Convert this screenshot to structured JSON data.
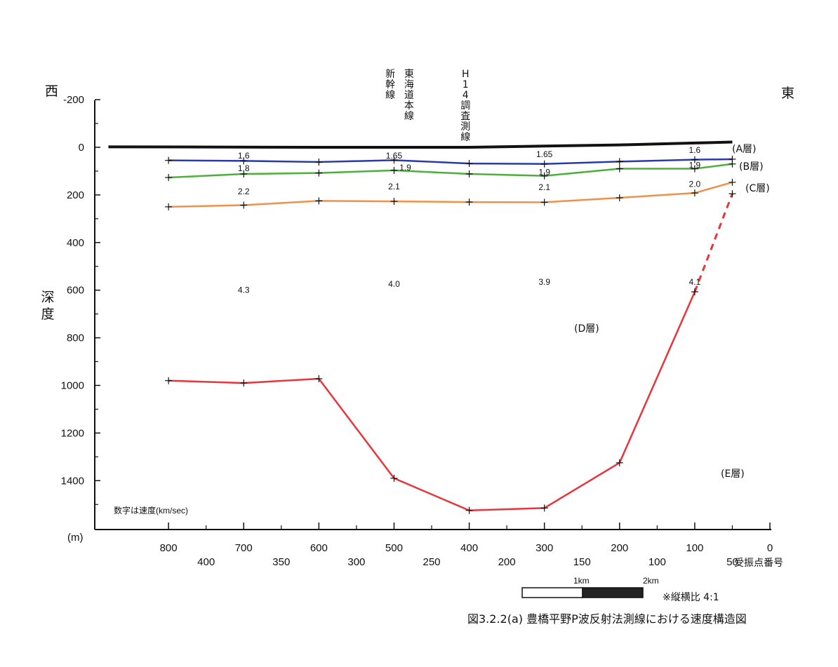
{
  "chart_data": {
    "type": "line",
    "title": "図3.2.2(a)  豊橋平野P波反射法測線における速度構造図",
    "ylabel": "深度",
    "yunit": "(m)",
    "west_label": "西",
    "east_label": "東",
    "ylim": [
      -200,
      1600
    ],
    "xlim": [
      0,
      880
    ],
    "yticks": [
      -200,
      0,
      200,
      400,
      600,
      800,
      1000,
      1200,
      1400
    ],
    "x_primary_label": "",
    "x_ticks_primary": [
      "800",
      "700",
      "600",
      "500",
      "400",
      "300",
      "200",
      "100",
      "0"
    ],
    "x_primary_values": [
      800,
      700,
      600,
      500,
      400,
      300,
      200,
      100,
      0
    ],
    "x_secondary_title": "受振点番号",
    "x_ticks_secondary": [
      "400",
      "350",
      "300",
      "250",
      "200",
      "150",
      "100",
      "50"
    ],
    "x_secondary_values": [
      750,
      650,
      550,
      450,
      350,
      250,
      150,
      50
    ],
    "crossing_lines": [
      {
        "label": "新幹線",
        "x": 505
      },
      {
        "label": "東海道本線",
        "x": 480
      },
      {
        "label": "H14調査測線",
        "x": 405
      }
    ],
    "series": [
      {
        "name": "(A層)",
        "color": "#111111",
        "x": [
          880,
          600,
          400,
          300,
          200,
          100,
          50
        ],
        "y": [
          -2,
          0,
          0,
          -5,
          -10,
          -18,
          -22
        ]
      },
      {
        "name": "(B層)",
        "color": "#2b3aa8",
        "x": [
          800,
          700,
          600,
          500,
          400,
          300,
          200,
          100,
          50
        ],
        "y": [
          55,
          57,
          62,
          54,
          68,
          70,
          60,
          52,
          50
        ]
      },
      {
        "name": "(C層)",
        "color": "#4caf3a",
        "x": [
          800,
          700,
          600,
          500,
          400,
          300,
          200,
          100,
          50
        ],
        "y": [
          127,
          112,
          108,
          97,
          112,
          120,
          90,
          90,
          70
        ]
      },
      {
        "name": "",
        "color": "#f0914a",
        "x": [
          800,
          700,
          600,
          500,
          400,
          300,
          200,
          100,
          50
        ],
        "y": [
          250,
          243,
          225,
          227,
          230,
          231,
          212,
          192,
          147
        ]
      },
      {
        "name": "(E層)",
        "color": "#e8343a",
        "x": [
          800,
          700,
          600,
          500,
          400,
          300,
          200,
          100
        ],
        "y": [
          980,
          990,
          972,
          1390,
          1525,
          1515,
          1325,
          607
        ]
      }
    ],
    "dashed_segment": {
      "color": "#e8343a",
      "x": [
        100,
        50
      ],
      "y": [
        607,
        195
      ]
    },
    "velocities": [
      {
        "text": "1.6",
        "x": 700,
        "y": 35
      },
      {
        "text": "1.65",
        "x": 500,
        "y": 35
      },
      {
        "text": "1.65",
        "x": 300,
        "y": 30
      },
      {
        "text": "1.6",
        "x": 100,
        "y": 12
      },
      {
        "text": "1.8",
        "x": 700,
        "y": 88
      },
      {
        "text": "1.9",
        "x": 485,
        "y": 85
      },
      {
        "text": "1.9",
        "x": 300,
        "y": 105
      },
      {
        "text": "1.9",
        "x": 100,
        "y": 75
      },
      {
        "text": "2.2",
        "x": 700,
        "y": 185
      },
      {
        "text": "2.1",
        "x": 500,
        "y": 165
      },
      {
        "text": "2.1",
        "x": 300,
        "y": 168
      },
      {
        "text": "2.0",
        "x": 100,
        "y": 155
      },
      {
        "text": "4.3",
        "x": 700,
        "y": 600
      },
      {
        "text": "4.0",
        "x": 500,
        "y": 575
      },
      {
        "text": "3.9",
        "x": 300,
        "y": 565
      },
      {
        "text": "4.1",
        "x": 100,
        "y": 565
      }
    ],
    "layer_labels": [
      {
        "text": "(A層)",
        "x": 0,
        "y": 0
      },
      {
        "text": "(B層)",
        "x": 0,
        "y": 78
      },
      {
        "text": "(C層)",
        "x": 0,
        "y": 172
      },
      {
        "text": "(D層)",
        "x": 250,
        "y": 770
      },
      {
        "text": "(E層)",
        "x": 50,
        "y": 1370
      }
    ],
    "note": "数字は速度(km/sec)",
    "scale_bar": {
      "label_1": "1km",
      "label_2": "2km"
    },
    "aspect_note": "※縦横比  4:1",
    "grid": false
  }
}
